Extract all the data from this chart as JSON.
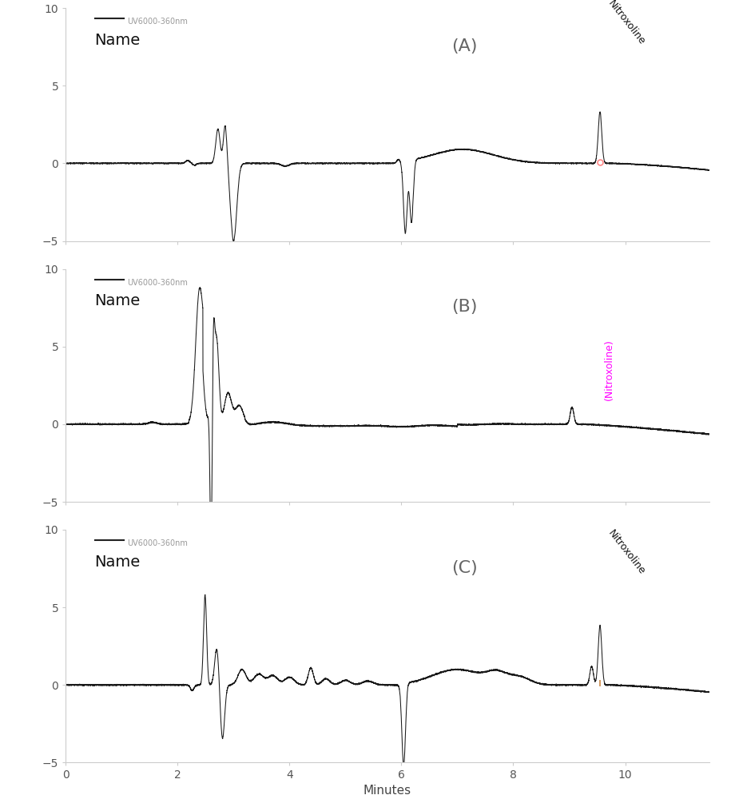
{
  "panels": [
    "A",
    "B",
    "C"
  ],
  "xlim": [
    0,
    11.5
  ],
  "ylim": [
    -5,
    10
  ],
  "yticks": [
    -5,
    0,
    5,
    10
  ],
  "xticks": [
    0,
    2,
    4,
    6,
    8,
    10
  ],
  "legend_label": "UV6000-360nm",
  "name_label": "Name",
  "xlabel": "Minutes",
  "background_color": "#ffffff",
  "line_color": "#1a1a1a",
  "label_A": "(A)",
  "label_B": "(B)",
  "label_C": "(C)",
  "nitroxoline_color_A": "#111111",
  "nitroxoline_color_B": "#ff00ff",
  "nitroxoline_color_C": "#111111",
  "marker_color_A": "#ff8888",
  "marker_color_C": "#cc8844"
}
